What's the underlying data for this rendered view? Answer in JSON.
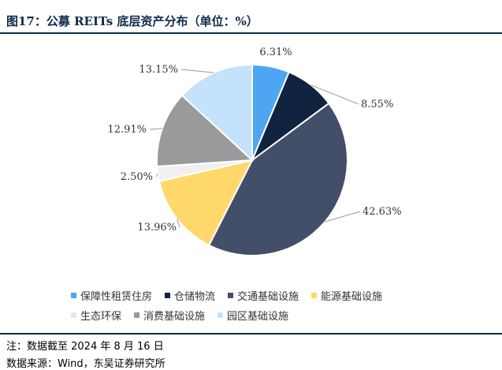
{
  "header": {
    "title": "图17：公募 REITs 底层资产分布（单位：%）"
  },
  "chart_data": {
    "type": "pie",
    "title": "",
    "series": [
      {
        "name": "保障性租赁住房",
        "value": 6.31,
        "label": "6.31%",
        "color": "#4ea6f2"
      },
      {
        "name": "仓储物流",
        "value": 8.55,
        "label": "8.55%",
        "color": "#10233f"
      },
      {
        "name": "交通基础设施",
        "value": 42.63,
        "label": "42.63%",
        "color": "#434f68"
      },
      {
        "name": "能源基础设施",
        "value": 13.96,
        "label": "13.96%",
        "color": "#fed86a"
      },
      {
        "name": "生态环保",
        "value": 2.5,
        "label": "2.50%",
        "color": "#f0f0f0"
      },
      {
        "name": "消费基础设施",
        "value": 12.91,
        "label": "12.91%",
        "color": "#9a9a9a"
      },
      {
        "name": "园区基础设施",
        "value": 13.15,
        "label": "13.15%",
        "color": "#c4e2fb"
      }
    ],
    "legend": "bottom",
    "start_angle": "12 o'clock",
    "direction": "clockwise"
  },
  "footer": {
    "note": "注：数据截至 2024 年 8 月 16 日",
    "source": "数据来源：Wind，东吴证券研究所"
  }
}
